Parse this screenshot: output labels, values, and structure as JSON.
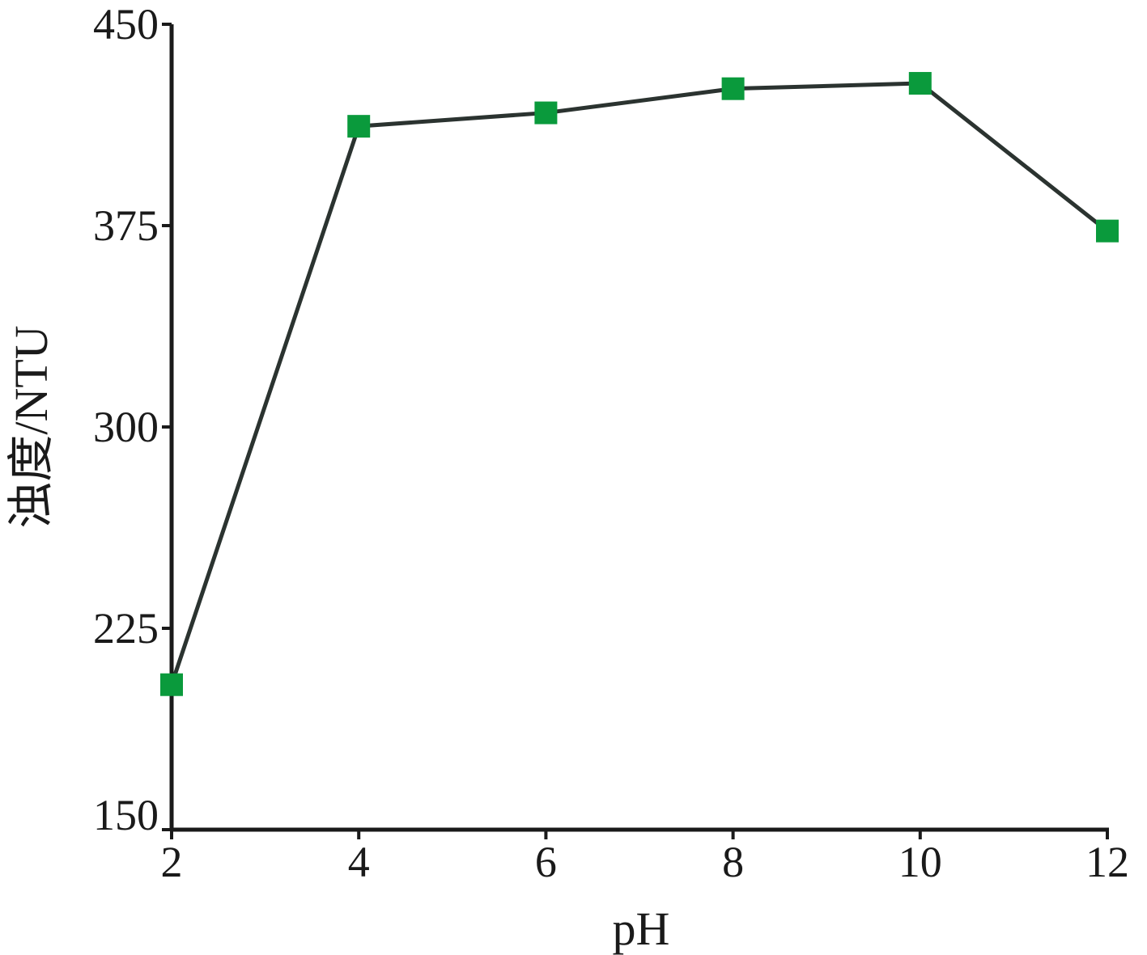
{
  "chart_data": {
    "type": "line",
    "title": "",
    "xlabel": "pH",
    "ylabel": "浊度/NTU",
    "x": [
      2,
      4,
      6,
      8,
      10,
      12
    ],
    "series": [
      {
        "values": [
          204,
          412,
          417,
          426,
          428,
          373
        ]
      }
    ],
    "xlim": [
      2,
      12
    ],
    "ylim": [
      150,
      450
    ],
    "xticks": [
      2,
      4,
      6,
      8,
      10,
      12
    ],
    "yticks": [
      150,
      225,
      300,
      375,
      450
    ],
    "xtick_labels": [
      "2",
      "4",
      "6",
      "8",
      "10",
      "12"
    ],
    "ytick_labels": [
      "150",
      "225",
      "300",
      "375",
      "450"
    ],
    "grid": false,
    "legend": "none",
    "colors": {
      "line": "#2b3330",
      "marker": "#0a9a3c",
      "axis": "#1a1a1a"
    },
    "marker_shape": "square"
  }
}
